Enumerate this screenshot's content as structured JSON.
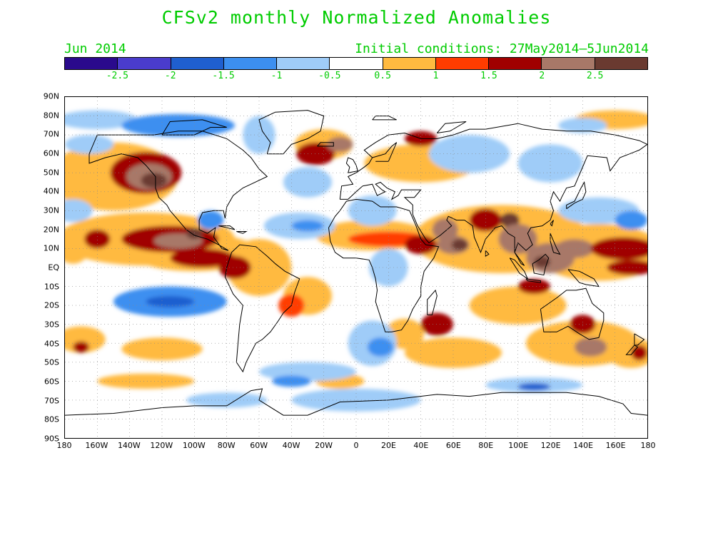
{
  "title": "CFSv2 monthly Normalized Anomalies",
  "month_label": "Jun 2014",
  "initial_conditions": "Initial conditions: 27May2014–5Jun2014",
  "colorbar": {
    "colors": [
      "#2a0a8c",
      "#4a3ccc",
      "#1f5fcf",
      "#3c8ff0",
      "#9fccf8",
      "#ffffff",
      "#ffba40",
      "#ff3c00",
      "#a00000",
      "#a87868",
      "#6a3a30"
    ],
    "labels": [
      "-2.5",
      "-2",
      "-1.5",
      "-1",
      "-0.5",
      "0.5",
      "1",
      "1.5",
      "2",
      "2.5"
    ]
  },
  "lat_labels": [
    "90N",
    "80N",
    "70N",
    "60N",
    "50N",
    "40N",
    "30N",
    "20N",
    "10N",
    "EQ",
    "10S",
    "20S",
    "30S",
    "40S",
    "50S",
    "60S",
    "70S",
    "80S",
    "90S"
  ],
  "lon_labels": [
    "180",
    "160W",
    "140W",
    "120W",
    "100W",
    "80W",
    "60W",
    "40W",
    "20W",
    "0",
    "20E",
    "40E",
    "60E",
    "80E",
    "100E",
    "120E",
    "140E",
    "160E",
    "180"
  ],
  "map": {
    "projection": "cylindrical equidistant",
    "lon_range": [
      -180,
      180
    ],
    "lat_range": [
      -90,
      90
    ],
    "gridlines": "dotted every 20° lon / 10° lat",
    "anomaly_regions": [
      {
        "name": "NE Pacific warm blob",
        "lon": -125,
        "lat": 47,
        "value": 2.6
      },
      {
        "name": "Central-east tropical Pacific warm",
        "lon": -110,
        "lat": 12,
        "value": 2.3
      },
      {
        "name": "SE Pacific cool",
        "lon": -115,
        "lat": -18,
        "value": -1.8
      },
      {
        "name": "Gulf of Mexico cool",
        "lon": -90,
        "lat": 24,
        "value": -1.4
      },
      {
        "name": "Central Atlantic cool",
        "lon": -40,
        "lat": 20,
        "value": -1.3
      },
      {
        "name": "Saharan / Sahel warm band",
        "lon": 10,
        "lat": 15,
        "value": 1.6
      },
      {
        "name": "Arabian Sea warm",
        "lon": 60,
        "lat": 12,
        "value": 2.5
      },
      {
        "name": "Bay of Bengal warm",
        "lon": 90,
        "lat": 20,
        "value": 2.4
      },
      {
        "name": "Maritime continent warm",
        "lon": 115,
        "lat": 5,
        "value": 2.5
      },
      {
        "name": "Western Pacific warm",
        "lon": 165,
        "lat": 8,
        "value": 1.7
      },
      {
        "name": "North Pacific cool",
        "lon": 160,
        "lat": 30,
        "value": -1.2
      },
      {
        "name": "South Atlantic cool",
        "lon": 10,
        "lat": -40,
        "value": -1.3
      },
      {
        "name": "Southern Ocean cool",
        "lon": 110,
        "lat": -63,
        "value": -1.8
      },
      {
        "name": "Tasman warm",
        "lon": 150,
        "lat": -42,
        "value": 2.1
      },
      {
        "name": "North Atlantic warm",
        "lon": -20,
        "lat": 65,
        "value": 2.0
      }
    ]
  }
}
